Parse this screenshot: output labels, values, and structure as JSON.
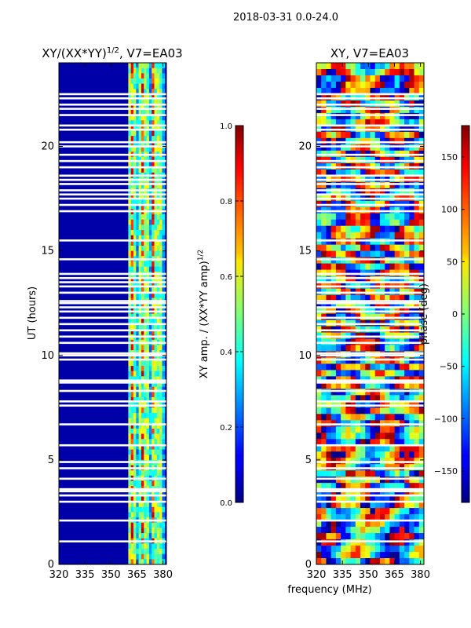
{
  "suptitle": "2018-03-31 0.0-24.0",
  "shared_xlabel": "frequency (MHz)",
  "chart_data": [
    {
      "type": "heatmap",
      "title_main": "XY/(XX*YY)",
      "title_exp": "1/2",
      "title_suffix": ", V7=EA03",
      "xlabel": "",
      "ylabel": "UT (hours)",
      "xlim": [
        320,
        382
      ],
      "ylim": [
        0,
        24
      ],
      "xticks": [
        320,
        335,
        350,
        365,
        380
      ],
      "yticks": [
        0,
        5,
        10,
        15,
        20
      ],
      "colorbar": {
        "label_main": "XY amp. / (XX*YY amp)",
        "label_exp": "1/2",
        "range": [
          0.0,
          1.0
        ],
        "ticks": [
          "0.0",
          "0.2",
          "0.4",
          "0.6",
          "0.8",
          "1.0"
        ],
        "colormap": "jet"
      },
      "active_band_mhz": [
        360,
        381
      ],
      "blank_rows_ut": [
        1.1,
        2.1,
        3.0,
        3.3,
        3.5,
        3.6,
        4.1,
        4.6,
        4.9,
        5.7,
        6.7,
        7.6,
        7.8,
        8.3,
        8.7,
        8.8,
        9.8,
        10.0,
        10.1,
        10.6,
        10.9,
        11.2,
        11.5,
        11.8,
        12.1,
        12.3,
        12.5,
        12.6,
        13.0,
        13.3,
        13.5,
        13.7,
        13.9,
        14.6,
        15.5,
        16.9,
        17.2,
        17.5,
        17.7,
        17.9,
        18.2,
        18.4,
        18.6,
        19.0,
        19.3,
        19.6,
        20.0,
        20.2,
        20.8,
        21.0,
        21.5,
        21.8,
        22.0,
        22.3,
        22.5
      ]
    },
    {
      "type": "heatmap",
      "title_main": "XY, V7=EA03",
      "title_exp": "",
      "title_suffix": "",
      "xlabel": "",
      "ylabel": "",
      "xlim": [
        320,
        382
      ],
      "ylim": [
        0,
        24
      ],
      "xticks": [
        320,
        335,
        350,
        365,
        380
      ],
      "yticks": [
        0,
        5,
        10,
        15,
        20
      ],
      "colorbar": {
        "label_main": "phase (deg)",
        "label_exp": "",
        "range": [
          -180,
          180
        ],
        "ticks": [
          "−150",
          "−100",
          "−50",
          "0",
          "50",
          "100",
          "150"
        ],
        "tick_values": [
          -150,
          -100,
          -50,
          0,
          50,
          100,
          150
        ],
        "colormap": "jet"
      },
      "blank_rows_ut": [
        1.1,
        2.1,
        3.0,
        3.3,
        3.5,
        3.6,
        4.1,
        4.6,
        4.9,
        5.7,
        6.7,
        7.6,
        7.8,
        8.3,
        8.7,
        8.8,
        9.8,
        10.0,
        10.1,
        10.6,
        10.9,
        11.2,
        11.5,
        11.8,
        12.1,
        12.3,
        12.5,
        12.6,
        13.0,
        13.3,
        13.5,
        13.7,
        13.9,
        14.6,
        15.5,
        16.9,
        17.2,
        17.5,
        17.7,
        17.9,
        18.2,
        18.4,
        18.6,
        19.0,
        19.3,
        19.6,
        20.0,
        20.2,
        20.8,
        21.0,
        21.5,
        21.8,
        22.0,
        22.3,
        22.5
      ]
    }
  ]
}
